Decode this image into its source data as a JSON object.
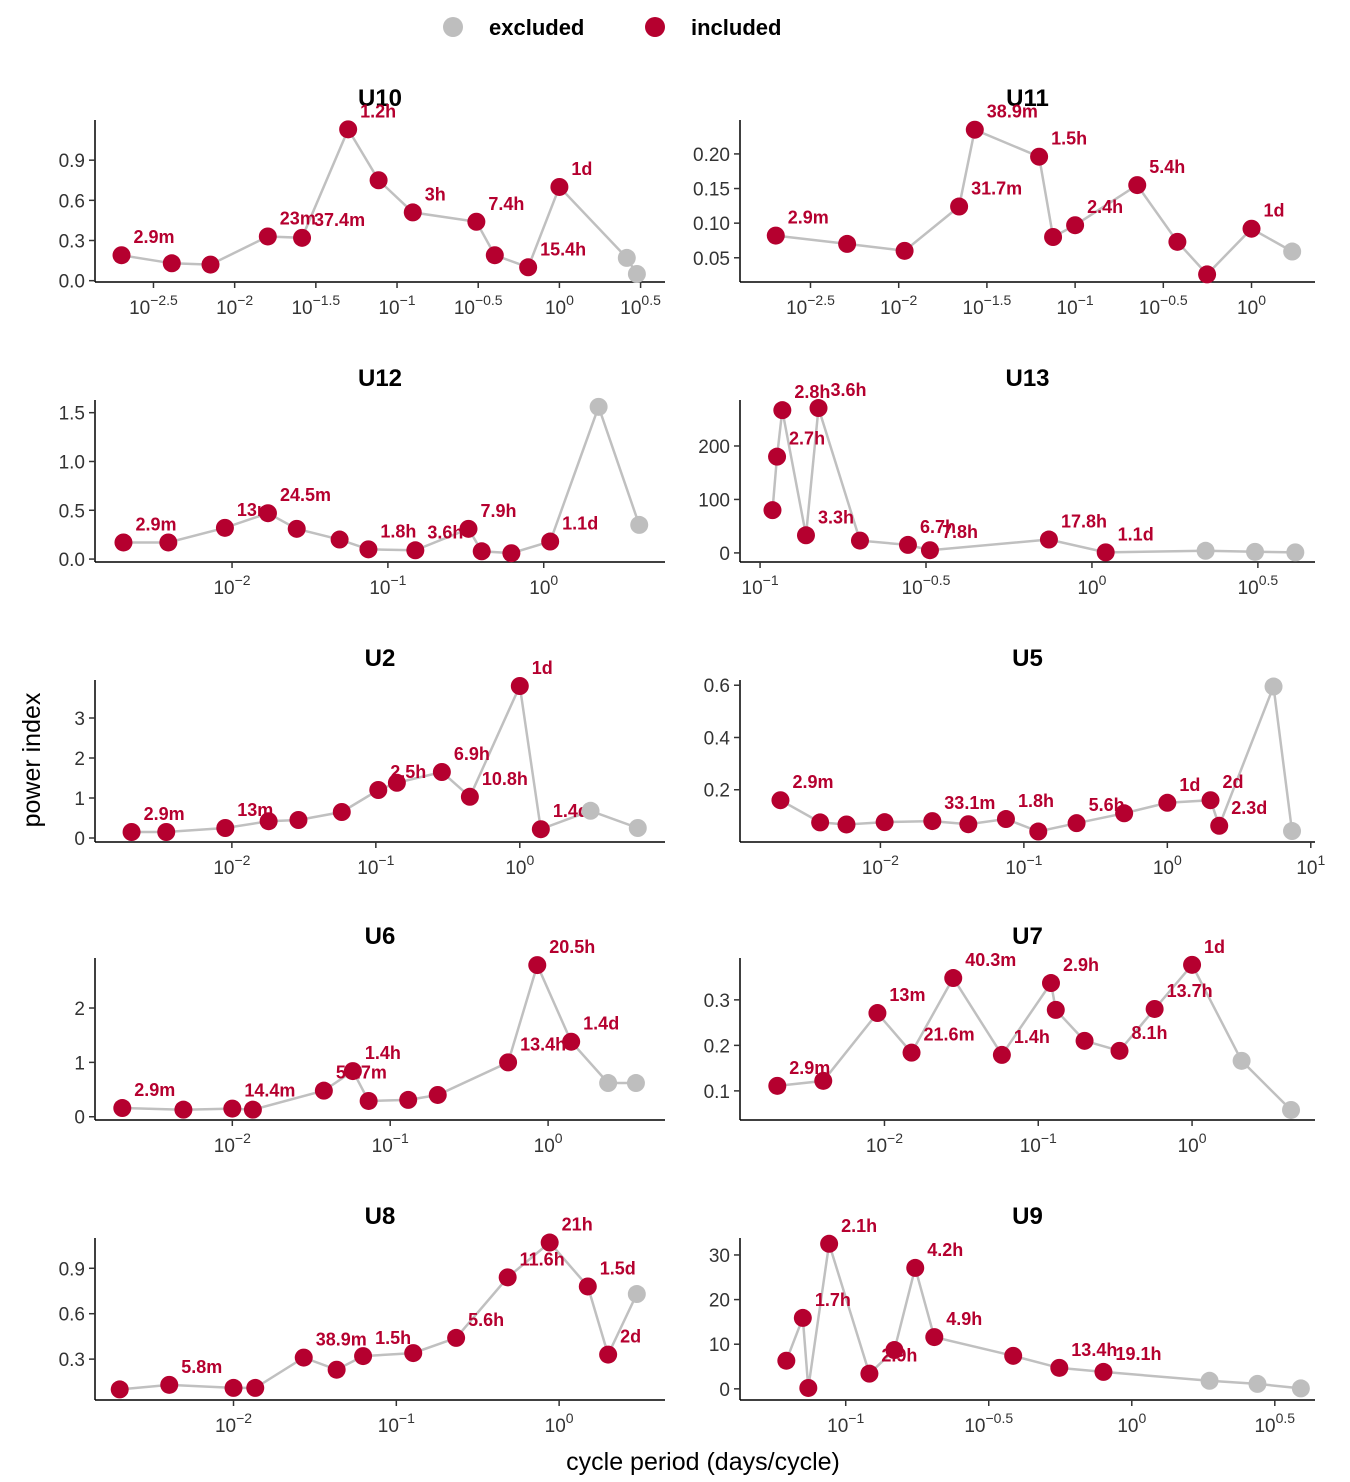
{
  "legend": [
    {
      "name": "excluded",
      "color": "#bebebe"
    },
    {
      "name": "included",
      "color": "#b5002f"
    }
  ],
  "xlabel": "cycle period (days/cycle)",
  "ylabel": "power index",
  "chart_data": [
    {
      "type": "scatter",
      "title": "U10",
      "xscale": "log",
      "xlim": [
        0.00138,
        4.47
      ],
      "ylim": [
        -0.01,
        1.2
      ],
      "xticks": [
        {
          "value": 0.003162,
          "label": "10^−2.5"
        },
        {
          "value": 0.01,
          "label": "10^−2"
        },
        {
          "value": 0.03162,
          "label": "10^−1.5"
        },
        {
          "value": 0.1,
          "label": "10^−1"
        },
        {
          "value": 0.3162,
          "label": "10^−0.5"
        },
        {
          "value": 1,
          "label": "10^0"
        },
        {
          "value": 3.162,
          "label": "10^0.5"
        }
      ],
      "yticks": [
        {
          "value": 0,
          "label": "0.0"
        },
        0.3,
        0.6,
        0.9
      ],
      "x": [
        0.00201,
        0.0041,
        0.0071,
        0.016,
        0.026,
        0.05,
        0.077,
        0.125,
        0.308,
        0.4,
        0.642,
        1,
        2.6,
        3.0
      ],
      "values": [
        0.19,
        0.13,
        0.12,
        0.33,
        0.32,
        1.13,
        0.75,
        0.51,
        0.44,
        0.19,
        0.1,
        0.7,
        0.17,
        0.05
      ],
      "point_labels": [
        "2.9m",
        null,
        null,
        "23m",
        "37.4m",
        "1.2h",
        null,
        "3h",
        "7.4h",
        null,
        "15.4h",
        "1d",
        null,
        null
      ],
      "included": [
        true,
        true,
        true,
        true,
        true,
        true,
        true,
        true,
        true,
        true,
        true,
        true,
        false,
        false
      ]
    },
    {
      "type": "scatter",
      "title": "U11",
      "xscale": "log",
      "xlim": [
        0.00126,
        2.29
      ],
      "ylim": [
        0.015,
        0.249
      ],
      "xticks": [
        {
          "value": 0.003162,
          "label": "10^−2.5"
        },
        {
          "value": 0.01,
          "label": "10^−2"
        },
        {
          "value": 0.03162,
          "label": "10^−1.5"
        },
        {
          "value": 0.1,
          "label": "10^−1"
        },
        {
          "value": 0.3162,
          "label": "10^−0.5"
        },
        {
          "value": 1,
          "label": "10^0"
        }
      ],
      "yticks": [
        0.05,
        {
          "value": 0.1,
          "label": "0.10"
        },
        0.15,
        {
          "value": 0.2,
          "label": "0.20"
        }
      ],
      "x": [
        0.00201,
        0.0051,
        0.0108,
        0.022,
        0.027,
        0.0625,
        0.075,
        0.1,
        0.225,
        0.38,
        0.56,
        1,
        1.7
      ],
      "values": [
        0.082,
        0.07,
        0.06,
        0.124,
        0.235,
        0.196,
        0.08,
        0.097,
        0.155,
        0.073,
        0.026,
        0.092,
        0.059
      ],
      "point_labels": [
        "2.9m",
        null,
        null,
        "31.7m",
        "38.9m",
        "1.5h",
        null,
        "2.4h",
        "5.4h",
        null,
        null,
        "1d",
        null
      ],
      "included": [
        true,
        true,
        true,
        true,
        true,
        true,
        true,
        true,
        true,
        true,
        true,
        true,
        false
      ]
    },
    {
      "type": "scatter",
      "title": "U12",
      "xscale": "log",
      "xlim": [
        0.00132,
        6.0
      ],
      "ylim": [
        -0.03,
        1.63
      ],
      "xticks": [
        {
          "value": 0.01,
          "label": "10^−2"
        },
        {
          "value": 0.1,
          "label": "10^−1"
        },
        {
          "value": 1,
          "label": "10^0"
        }
      ],
      "yticks": [
        {
          "value": 0,
          "label": "0.0"
        },
        0.5,
        {
          "value": 1,
          "label": "1.0"
        },
        1.5
      ],
      "x": [
        0.00201,
        0.0039,
        0.009,
        0.017,
        0.026,
        0.049,
        0.075,
        0.15,
        0.329,
        0.4,
        0.62,
        1.1,
        2.25,
        4.1
      ],
      "values": [
        0.17,
        0.17,
        0.32,
        0.47,
        0.31,
        0.2,
        0.1,
        0.09,
        0.31,
        0.08,
        0.06,
        0.18,
        1.56,
        0.35
      ],
      "point_labels": [
        "2.9m",
        null,
        "13m",
        "24.5m",
        null,
        null,
        "1.8h",
        "3.6h",
        "7.9h",
        null,
        null,
        "1.1d",
        null,
        null
      ],
      "included": [
        true,
        true,
        true,
        true,
        true,
        true,
        true,
        true,
        true,
        true,
        true,
        true,
        false,
        false
      ]
    },
    {
      "type": "scatter",
      "title": "U13",
      "xscale": "log",
      "xlim": [
        0.087,
        4.7
      ],
      "ylim": [
        -17,
        286
      ],
      "xticks": [
        {
          "value": 0.1,
          "label": "10^−1"
        },
        {
          "value": 0.3162,
          "label": "10^−0.5"
        },
        {
          "value": 1,
          "label": "10^0"
        },
        {
          "value": 3.162,
          "label": "10^0.5"
        }
      ],
      "yticks": [
        0,
        100,
        200
      ],
      "x": [
        0.109,
        0.1125,
        0.1167,
        0.1375,
        0.15,
        0.2,
        0.279,
        0.325,
        0.742,
        1.1,
        2.2,
        3.1,
        4.1
      ],
      "values": [
        80,
        180,
        267,
        33,
        271,
        23,
        15,
        5,
        25,
        1,
        4,
        2,
        1
      ],
      "point_labels": [
        null,
        "2.7h",
        "2.8h",
        "3.3h",
        "3.6h",
        null,
        "6.7h",
        "7.8h",
        "17.8h",
        "1.1d",
        null,
        null,
        null
      ],
      "included": [
        true,
        true,
        true,
        true,
        true,
        true,
        true,
        true,
        true,
        true,
        false,
        false,
        false
      ]
    },
    {
      "type": "scatter",
      "title": "U2",
      "xscale": "log",
      "xlim": [
        0.00112,
        10.2
      ],
      "ylim": [
        -0.1,
        3.95
      ],
      "xticks": [
        {
          "value": 0.01,
          "label": "10^−2"
        },
        {
          "value": 0.1,
          "label": "10^−1"
        },
        {
          "value": 1,
          "label": "10^0"
        }
      ],
      "yticks": [
        0,
        1,
        2,
        3
      ],
      "x": [
        0.00201,
        0.0035,
        0.009,
        0.018,
        0.029,
        0.058,
        0.104,
        0.14,
        0.2875,
        0.45,
        1,
        1.4,
        3.1,
        6.6
      ],
      "values": [
        0.15,
        0.15,
        0.25,
        0.42,
        0.45,
        0.65,
        1.2,
        1.38,
        1.65,
        1.03,
        3.8,
        0.22,
        0.68,
        0.25
      ],
      "point_labels": [
        "2.9m",
        null,
        "13m",
        null,
        null,
        null,
        "2.5h",
        null,
        "6.9h",
        "10.8h",
        "1d",
        "1.4d",
        null,
        null
      ],
      "included": [
        true,
        true,
        true,
        true,
        true,
        true,
        true,
        true,
        true,
        true,
        true,
        true,
        false,
        false
      ]
    },
    {
      "type": "scatter",
      "title": "U5",
      "xscale": "log",
      "xlim": [
        0.00105,
        10.7
      ],
      "ylim": [
        0,
        0.62
      ],
      "xticks": [
        {
          "value": 0.01,
          "label": "10^−2"
        },
        {
          "value": 0.1,
          "label": "10^−1"
        },
        {
          "value": 1,
          "label": "10^0"
        },
        {
          "value": 10,
          "label": "10^1"
        }
      ],
      "yticks": [
        0.2,
        0.4,
        0.6
      ],
      "x": [
        0.00201,
        0.0038,
        0.0058,
        0.0107,
        0.023,
        0.041,
        0.075,
        0.126,
        0.233,
        0.5,
        1,
        2,
        2.3,
        5.5,
        7.4
      ],
      "values": [
        0.16,
        0.075,
        0.067,
        0.076,
        0.08,
        0.068,
        0.088,
        0.04,
        0.072,
        0.11,
        0.15,
        0.16,
        0.062,
        0.595,
        0.042
      ],
      "point_labels": [
        "2.9m",
        null,
        null,
        null,
        "33.1m",
        null,
        "1.8h",
        null,
        "5.6h",
        null,
        "1d",
        "2d",
        "2.3d",
        null,
        null
      ],
      "included": [
        true,
        true,
        true,
        true,
        true,
        true,
        true,
        true,
        true,
        true,
        true,
        true,
        true,
        false,
        false
      ]
    },
    {
      "type": "scatter",
      "title": "U6",
      "xscale": "log",
      "xlim": [
        0.00135,
        5.5
      ],
      "ylim": [
        -0.06,
        2.92
      ],
      "xticks": [
        {
          "value": 0.01,
          "label": "10^−2"
        },
        {
          "value": 0.1,
          "label": "10^−1"
        },
        {
          "value": 1,
          "label": "10^0"
        }
      ],
      "yticks": [
        0,
        1,
        2
      ],
      "x": [
        0.00201,
        0.0049,
        0.01,
        0.0135,
        0.038,
        0.058,
        0.073,
        0.13,
        0.2,
        0.558,
        0.854,
        1.4,
        2.4,
        3.6
      ],
      "values": [
        0.16,
        0.13,
        0.15,
        0.13,
        0.48,
        0.84,
        0.29,
        0.31,
        0.4,
        1.0,
        2.79,
        1.38,
        0.62,
        0.62
      ],
      "point_labels": [
        "2.9m",
        null,
        "14.4m",
        null,
        "54.7m",
        "1.4h",
        null,
        null,
        null,
        "13.4h",
        "20.5h",
        "1.4d",
        null,
        null
      ],
      "included": [
        true,
        true,
        true,
        true,
        true,
        true,
        true,
        true,
        true,
        true,
        true,
        true,
        false,
        false
      ]
    },
    {
      "type": "scatter",
      "title": "U7",
      "xscale": "log",
      "xlim": [
        0.00115,
        6.3
      ],
      "ylim": [
        0.036,
        0.392
      ],
      "xticks": [
        {
          "value": 0.01,
          "label": "10^−2"
        },
        {
          "value": 0.1,
          "label": "10^−1"
        },
        {
          "value": 1,
          "label": "10^0"
        }
      ],
      "yticks": [
        0.1,
        0.2,
        0.3
      ],
      "x": [
        0.00201,
        0.004,
        0.009,
        0.015,
        0.028,
        0.058,
        0.121,
        0.13,
        0.2,
        0.3375,
        0.571,
        1,
        2.1,
        4.4
      ],
      "values": [
        0.111,
        0.122,
        0.271,
        0.184,
        0.348,
        0.179,
        0.337,
        0.278,
        0.21,
        0.188,
        0.28,
        0.377,
        0.166,
        0.058
      ],
      "point_labels": [
        "2.9m",
        null,
        "13m",
        "21.6m",
        "40.3m",
        "1.4h",
        "2.9h",
        null,
        null,
        "8.1h",
        "13.7h",
        "1d",
        null,
        null
      ],
      "included": [
        true,
        true,
        true,
        true,
        true,
        true,
        true,
        true,
        true,
        true,
        true,
        true,
        false,
        false
      ]
    },
    {
      "type": "scatter",
      "title": "U8",
      "xscale": "log",
      "xlim": [
        0.00141,
        4.47
      ],
      "ylim": [
        0.03,
        1.1
      ],
      "xticks": [
        {
          "value": 0.01,
          "label": "10^−2"
        },
        {
          "value": 0.1,
          "label": "10^−1"
        },
        {
          "value": 1,
          "label": "10^0"
        }
      ],
      "yticks": [
        0.3,
        0.6,
        0.9
      ],
      "x": [
        0.002,
        0.00403,
        0.01,
        0.0136,
        0.027,
        0.043,
        0.0625,
        0.127,
        0.233,
        0.483,
        0.875,
        1.5,
        2,
        3.0
      ],
      "values": [
        0.1,
        0.13,
        0.11,
        0.11,
        0.31,
        0.23,
        0.32,
        0.34,
        0.44,
        0.84,
        1.07,
        0.78,
        0.33,
        0.73
      ],
      "point_labels": [
        null,
        "5.8m",
        null,
        null,
        "38.9m",
        null,
        "1.5h",
        null,
        "5.6h",
        "11.6h",
        "21h",
        "1.5d",
        "2d",
        null
      ],
      "included": [
        true,
        true,
        true,
        true,
        true,
        true,
        true,
        true,
        true,
        true,
        true,
        true,
        true,
        false
      ]
    },
    {
      "type": "scatter",
      "title": "U9",
      "xscale": "log",
      "xlim": [
        0.0427,
        4.37
      ],
      "ylim": [
        -2.5,
        33.8
      ],
      "xticks": [
        {
          "value": 0.1,
          "label": "10^−1"
        },
        {
          "value": 0.3162,
          "label": "10^−0.5"
        },
        {
          "value": 1,
          "label": "10^0"
        },
        {
          "value": 3.162,
          "label": "10^0.5"
        }
      ],
      "yticks": [
        0,
        10,
        20,
        30
      ],
      "x": [
        0.062,
        0.0708,
        0.074,
        0.0875,
        0.121,
        0.148,
        0.175,
        0.204,
        0.385,
        0.558,
        0.796,
        1.87,
        2.75,
        3.9
      ],
      "values": [
        6.3,
        15.9,
        0.2,
        32.5,
        3.4,
        8.7,
        27.1,
        11.6,
        7.4,
        4.7,
        3.8,
        1.8,
        1.1,
        0.1
      ],
      "point_labels": [
        null,
        "1.7h",
        null,
        "2.1h",
        "2.9h",
        null,
        "4.2h",
        "4.9h",
        null,
        "13.4h",
        "19.1h",
        null,
        null,
        null
      ],
      "included": [
        true,
        true,
        true,
        true,
        true,
        true,
        true,
        true,
        true,
        true,
        true,
        false,
        false,
        false
      ]
    }
  ]
}
